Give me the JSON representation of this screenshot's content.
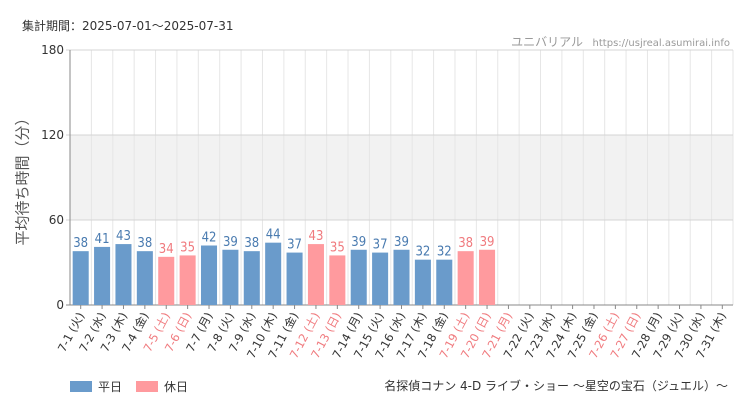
{
  "header": {
    "period": "集計期間：2025-07-01～2025-07-31",
    "brand": "ユニバリアル",
    "url": "https://usjreal.asumirai.info"
  },
  "footer": {
    "attraction": "名探偵コナン 4-D ライブ・ショー ～星空の宝石（ジュエル）～"
  },
  "legend": {
    "weekday_label": "平日",
    "holiday_label": "休日"
  },
  "colors": {
    "weekday": "#6a9bcb",
    "holiday": "#ff9a9e",
    "weekday_text": "#4a7bb0",
    "holiday_text": "#f07a7e",
    "band": "#f2f2f2",
    "grid": "#e6e6e6"
  },
  "chart_data": {
    "type": "bar",
    "ylabel": "平均待ち時間（分）",
    "ylim": [
      0,
      180
    ],
    "yticks": [
      0,
      60,
      120,
      180
    ],
    "grid": true,
    "legend_position": "bottom-left",
    "categories": [
      "7-1 (火)",
      "7-2 (水)",
      "7-3 (木)",
      "7-4 (金)",
      "7-5 (土)",
      "7-6 (日)",
      "7-7 (月)",
      "7-8 (火)",
      "7-9 (水)",
      "7-10 (木)",
      "7-11 (金)",
      "7-12 (土)",
      "7-13 (日)",
      "7-14 (月)",
      "7-15 (火)",
      "7-16 (水)",
      "7-17 (木)",
      "7-18 (金)",
      "7-19 (土)",
      "7-20 (日)",
      "7-21 (月)",
      "7-22 (火)",
      "7-23 (水)",
      "7-24 (木)",
      "7-25 (金)",
      "7-26 (土)",
      "7-27 (日)",
      "7-28 (月)",
      "7-29 (火)",
      "7-30 (水)",
      "7-31 (木)"
    ],
    "values": [
      38,
      41,
      43,
      38,
      34,
      35,
      42,
      39,
      38,
      44,
      37,
      43,
      35,
      39,
      37,
      39,
      32,
      32,
      38,
      39,
      null,
      null,
      null,
      null,
      null,
      null,
      null,
      null,
      null,
      null,
      null
    ],
    "day_type": [
      "weekday",
      "weekday",
      "weekday",
      "weekday",
      "holiday",
      "holiday",
      "weekday",
      "weekday",
      "weekday",
      "weekday",
      "weekday",
      "holiday",
      "holiday",
      "weekday",
      "weekday",
      "weekday",
      "weekday",
      "weekday",
      "holiday",
      "holiday",
      "holiday",
      "weekday",
      "weekday",
      "weekday",
      "weekday",
      "holiday",
      "holiday",
      "weekday",
      "weekday",
      "weekday",
      "weekday"
    ]
  }
}
